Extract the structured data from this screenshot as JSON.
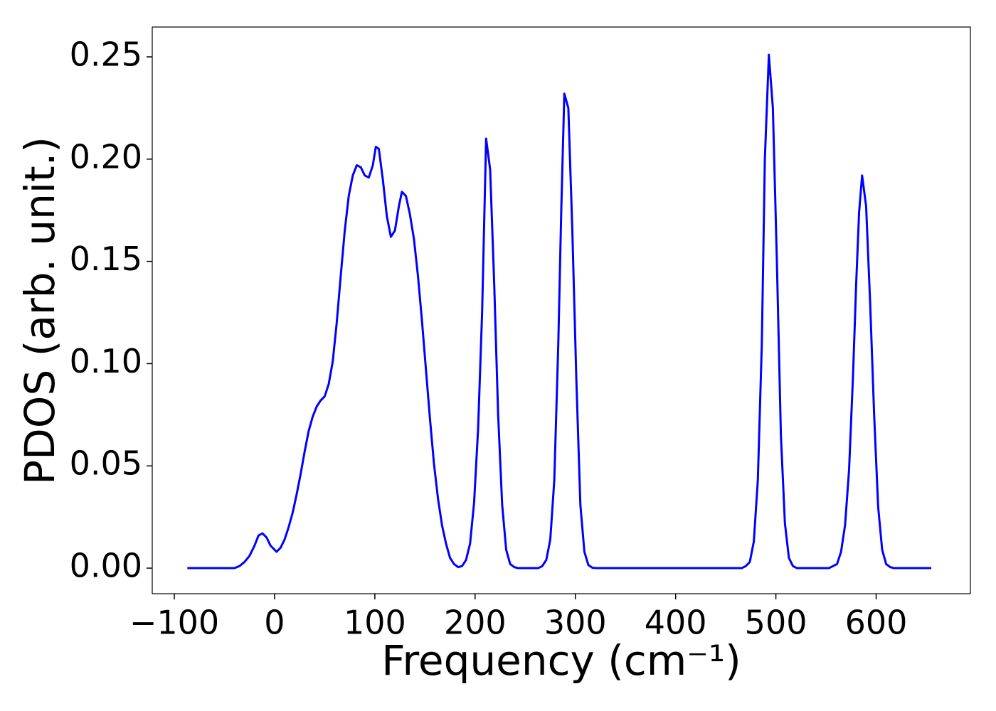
{
  "chart_data": {
    "type": "line",
    "xlabel": "Frequency (cm⁻¹)",
    "ylabel": "PDOS (arb. unit.)",
    "xlim": [
      -122,
      694
    ],
    "ylim": [
      -0.0125,
      0.2646
    ],
    "xticks": [
      {
        "value": -100,
        "label": "−100"
      },
      0,
      100,
      200,
      300,
      400,
      500,
      600
    ],
    "yticks": [
      {
        "value": 0,
        "label": "0.00"
      },
      {
        "value": 0.05,
        "label": "0.05"
      },
      {
        "value": 0.1,
        "label": "0.10"
      },
      {
        "value": 0.15,
        "label": "0.15"
      },
      {
        "value": 0.2,
        "label": "0.20"
      },
      {
        "value": 0.25,
        "label": "0.25"
      }
    ],
    "grid": false,
    "x": [
      -87,
      -40,
      -35,
      -30,
      -25,
      -20,
      -16,
      -12,
      -8,
      -4,
      0,
      2,
      6,
      10,
      14,
      18,
      22,
      26,
      30,
      34,
      38,
      42,
      46,
      50,
      54,
      58,
      62,
      66,
      70,
      74,
      78,
      82,
      86,
      90,
      94,
      98,
      101,
      104,
      108,
      112,
      116,
      120,
      124,
      127,
      131,
      135,
      139,
      143,
      147,
      151,
      155,
      159,
      163,
      167,
      171,
      175,
      179,
      183,
      187,
      191,
      195,
      199,
      203,
      207,
      211,
      215,
      219,
      223,
      227,
      231,
      235,
      239,
      243,
      263,
      267,
      271,
      275,
      279,
      283,
      286,
      289,
      293,
      297,
      301,
      305,
      309,
      313,
      317,
      321,
      466,
      470,
      474,
      478,
      482,
      486,
      489,
      493,
      497,
      501,
      505,
      509,
      513,
      517,
      521,
      553,
      557,
      561,
      565,
      569,
      573,
      577,
      580,
      583,
      586,
      590,
      594,
      598,
      602,
      606,
      610,
      614,
      618,
      655
    ],
    "series": [
      {
        "color": "#0000ff",
        "values": [
          0,
          0,
          0.001,
          0.003,
          0.006,
          0.011,
          0.016,
          0.017,
          0.015,
          0.011,
          0.009,
          0.008,
          0.01,
          0.014,
          0.02,
          0.027,
          0.036,
          0.046,
          0.057,
          0.067,
          0.074,
          0.079,
          0.082,
          0.084,
          0.09,
          0.101,
          0.12,
          0.143,
          0.165,
          0.182,
          0.192,
          0.197,
          0.196,
          0.192,
          0.191,
          0.197,
          0.206,
          0.205,
          0.19,
          0.172,
          0.162,
          0.165,
          0.177,
          0.184,
          0.182,
          0.173,
          0.161,
          0.143,
          0.121,
          0.097,
          0.073,
          0.051,
          0.034,
          0.021,
          0.012,
          0.005,
          0.002,
          0.0005,
          0.001,
          0.004,
          0.012,
          0.032,
          0.068,
          0.125,
          0.21,
          0.195,
          0.14,
          0.075,
          0.031,
          0.009,
          0.002,
          0.0005,
          0,
          0,
          0.001,
          0.004,
          0.014,
          0.043,
          0.11,
          0.176,
          0.232,
          0.225,
          0.165,
          0.092,
          0.031,
          0.008,
          0.0015,
          0.0002,
          0,
          0,
          0.001,
          0.003,
          0.013,
          0.043,
          0.11,
          0.2,
          0.251,
          0.225,
          0.15,
          0.065,
          0.022,
          0.005,
          0.001,
          0,
          0,
          0.001,
          0.002,
          0.008,
          0.021,
          0.048,
          0.095,
          0.138,
          0.174,
          0.192,
          0.177,
          0.13,
          0.075,
          0.03,
          0.009,
          0.002,
          0.0005,
          0,
          0
        ]
      }
    ]
  }
}
